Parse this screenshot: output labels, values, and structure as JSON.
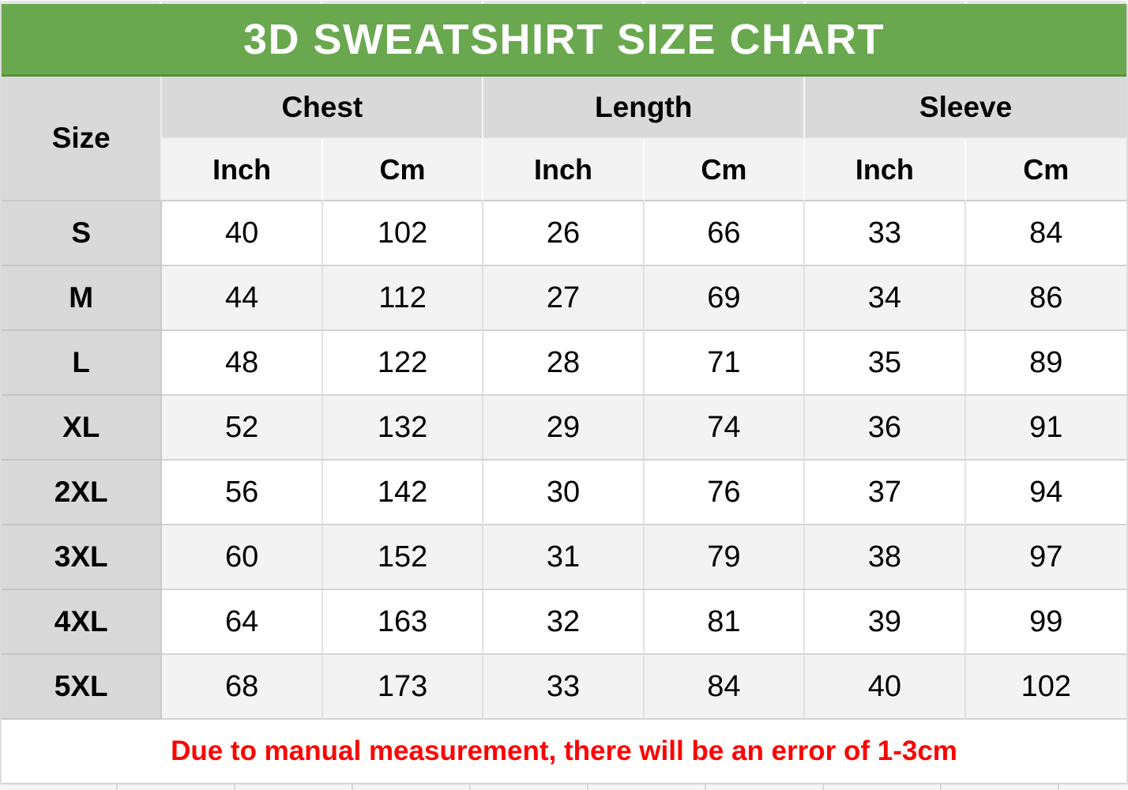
{
  "colors": {
    "banner_green": "#6aa84f",
    "banner_green_dark": "#569135",
    "header_gray": "#d9d9d9",
    "subheader_gray": "#f3f3f3",
    "alt_row_gray": "#f3f3f3",
    "note_red": "#ff0000"
  },
  "banner": {
    "title": "3D SWEATSHIRT SIZE CHART"
  },
  "table": {
    "size_header": "Size",
    "groups": [
      {
        "label": "Chest",
        "sub": [
          "Inch",
          "Cm"
        ]
      },
      {
        "label": "Length",
        "sub": [
          "Inch",
          "Cm"
        ]
      },
      {
        "label": "Sleeve",
        "sub": [
          "Inch",
          "Cm"
        ]
      }
    ],
    "rows": [
      {
        "size": "S",
        "values": [
          "40",
          "102",
          "26",
          "66",
          "33",
          "84"
        ]
      },
      {
        "size": "M",
        "values": [
          "44",
          "112",
          "27",
          "69",
          "34",
          "86"
        ]
      },
      {
        "size": "L",
        "values": [
          "48",
          "122",
          "28",
          "71",
          "35",
          "89"
        ]
      },
      {
        "size": "XL",
        "values": [
          "52",
          "132",
          "29",
          "74",
          "36",
          "91"
        ]
      },
      {
        "size": "2XL",
        "values": [
          "56",
          "142",
          "30",
          "76",
          "37",
          "94"
        ]
      },
      {
        "size": "3XL",
        "values": [
          "60",
          "152",
          "31",
          "79",
          "38",
          "97"
        ]
      },
      {
        "size": "4XL",
        "values": [
          "64",
          "163",
          "32",
          "81",
          "39",
          "99"
        ]
      },
      {
        "size": "5XL",
        "values": [
          "68",
          "173",
          "33",
          "84",
          "40",
          "102"
        ]
      }
    ]
  },
  "note": {
    "text": "Due to manual measurement, there will be an error of 1-3cm"
  },
  "chart_data": {
    "type": "table",
    "title": "3D SWEATSHIRT SIZE CHART",
    "columns": [
      "Size",
      "Chest Inch",
      "Chest Cm",
      "Length Inch",
      "Length Cm",
      "Sleeve Inch",
      "Sleeve Cm"
    ],
    "rows": [
      [
        "S",
        40,
        102,
        26,
        66,
        33,
        84
      ],
      [
        "M",
        44,
        112,
        27,
        69,
        34,
        86
      ],
      [
        "L",
        48,
        122,
        28,
        71,
        35,
        89
      ],
      [
        "XL",
        52,
        132,
        29,
        74,
        36,
        91
      ],
      [
        "2XL",
        56,
        142,
        30,
        76,
        37,
        94
      ],
      [
        "3XL",
        60,
        152,
        31,
        79,
        38,
        97
      ],
      [
        "4XL",
        64,
        163,
        32,
        81,
        39,
        99
      ],
      [
        "5XL",
        68,
        173,
        33,
        84,
        40,
        102
      ]
    ],
    "note": "Due to manual measurement, there will be an error of 1-3cm"
  }
}
